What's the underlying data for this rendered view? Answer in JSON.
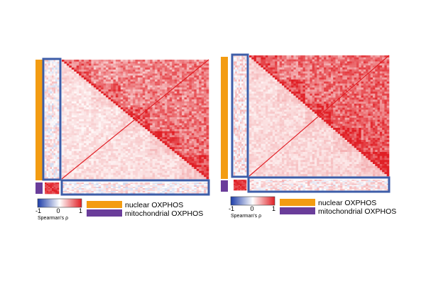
{
  "chart_data": [
    {
      "type": "heatmap",
      "title": "",
      "matrix_order": [
        "nuclear OXPHOS",
        "mitochondrial OXPHOS"
      ],
      "nuclear_count": 110,
      "mitochondrial_count": 13,
      "block_mean_rho": {
        "nuclear_nuclear": 0.35,
        "mito_mito": 0.85,
        "nuclear_mito": 0.05,
        "diagonal": 1.0
      },
      "colorbar": {
        "label": "Spearman's ρ",
        "ticks": [
          "-1",
          "0",
          "1"
        ],
        "range": [
          -1,
          1
        ]
      },
      "legend": [
        {
          "label": "nuclear OXPHOS",
          "color": "#F39C12"
        },
        {
          "label": "mitochondrial OXPHOS",
          "color": "#6A3D9A"
        }
      ],
      "highlight_color": "#3D5DA8"
    },
    {
      "type": "heatmap",
      "title": "",
      "matrix_order": [
        "nuclear OXPHOS",
        "mitochondrial OXPHOS"
      ],
      "nuclear_count": 110,
      "mitochondrial_count": 13,
      "block_mean_rho": {
        "nuclear_nuclear": 0.45,
        "mito_mito": 0.85,
        "nuclear_mito": 0.1,
        "diagonal": 1.0
      },
      "colorbar": {
        "label": "Spearman's ρ",
        "ticks": [
          "-1",
          "0",
          "1"
        ],
        "range": [
          -1,
          1
        ]
      },
      "legend": [
        {
          "label": "nuclear OXPHOS",
          "color": "#F39C12"
        },
        {
          "label": "mitochondrial OXPHOS",
          "color": "#6A3D9A"
        }
      ],
      "highlight_color": "#3D5DA8"
    }
  ]
}
